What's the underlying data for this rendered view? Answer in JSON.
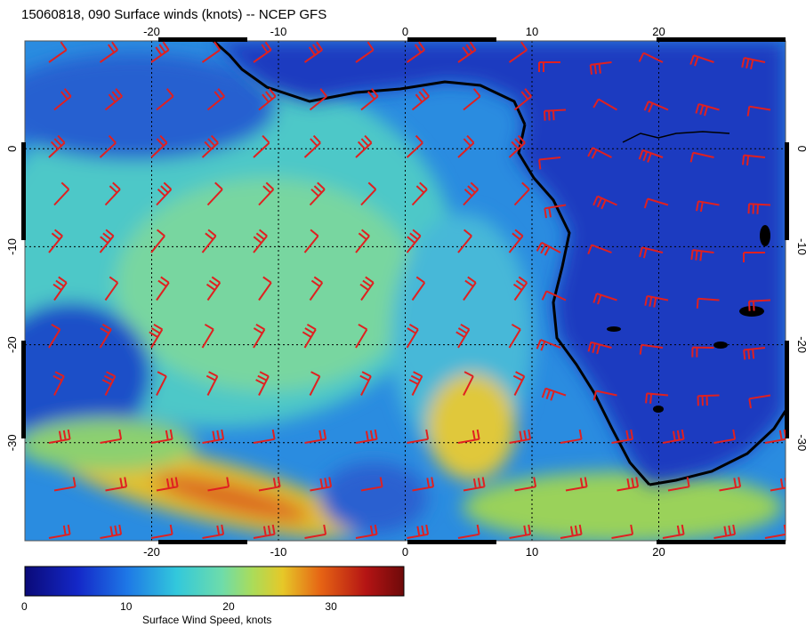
{
  "title": "15060818, 090 Surface winds (knots) -- NCEP GFS",
  "map": {
    "lon_range": [
      -30,
      30
    ],
    "lat_range": [
      -40,
      11
    ],
    "lon_ticks": [
      "-20",
      "-10",
      "0",
      "10",
      "20"
    ],
    "lat_ticks": [
      "0",
      "-10",
      "-20",
      "-30"
    ],
    "lon_tick_values": [
      -20,
      -10,
      0,
      10,
      20
    ],
    "lat_tick_values": [
      0,
      -10,
      -20,
      -30
    ],
    "wind_barb_color": "#e02020",
    "coastline_color": "#000000",
    "grid": "dotted"
  },
  "colorbar": {
    "title": "Surface Wind Speed, knots",
    "ticks": [
      "0",
      "10",
      "20",
      "30"
    ],
    "tick_values": [
      0,
      10,
      20,
      30
    ],
    "range": [
      0,
      37
    ],
    "colors": [
      "#0a0a78",
      "#1428c8",
      "#1e78e6",
      "#32c8dc",
      "#6edcaa",
      "#aadc5a",
      "#e6c828",
      "#e66414",
      "#b41414",
      "#6e0a0a"
    ]
  }
}
